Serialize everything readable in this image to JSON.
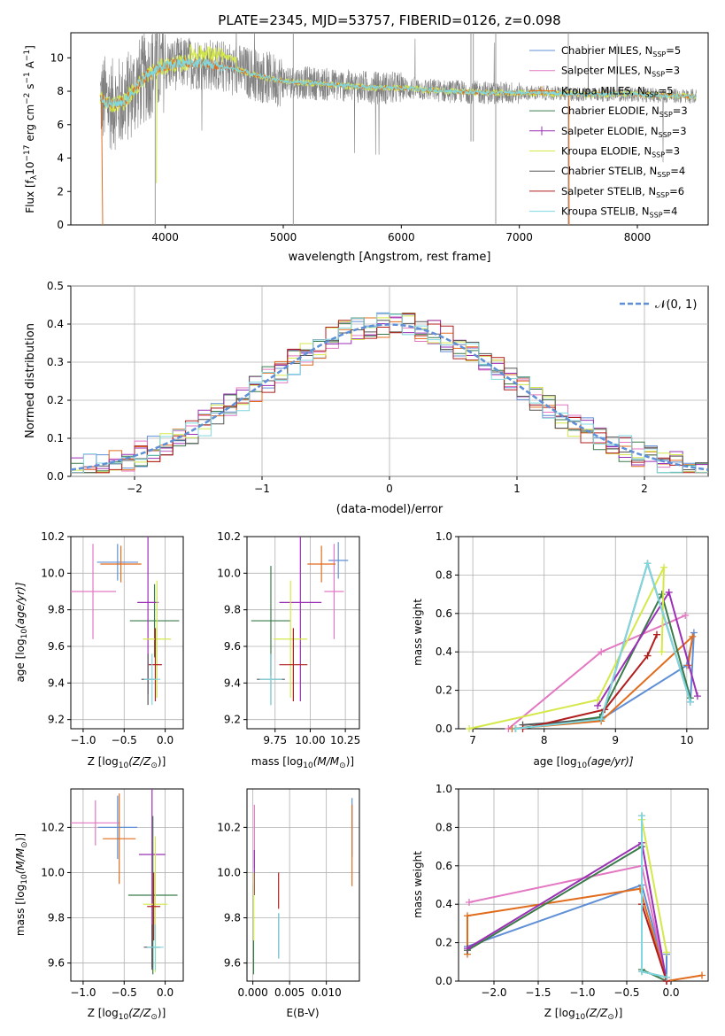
{
  "chart_data": [
    {
      "type": "line",
      "title": "PLATE=2345, MJD=53757, FIBERID=0126, z=0.098",
      "xlabel": "wavelength [Angstrom, rest frame]",
      "ylabel_main": "Flux [f",
      "ylabel_sub": "λ",
      "ylabel_rest": "10",
      "ylabel_exp": "−17",
      "ylabel_tail": " erg cm",
      "ylabel_exp2": "−2",
      "ylabel_tail2": " s",
      "ylabel_exp3": "−1",
      "ylabel_tail3": " A",
      "ylabel_exp4": "−1",
      "ylabel_end": "]",
      "xlim": [
        3200,
        8600
      ],
      "ylim": [
        0,
        11.5
      ],
      "xticks": [
        "4000",
        "5000",
        "6000",
        "7000",
        "8000"
      ],
      "yticks": [
        "0",
        "2",
        "4",
        "6",
        "8",
        "10"
      ],
      "grid": false,
      "legend_position": "top-right",
      "continuum": {
        "x": [
          3450,
          3550,
          3650,
          3750,
          3850,
          3950,
          4050,
          4200,
          4400,
          4600,
          4800,
          5000,
          5200,
          5400,
          5600,
          5800,
          6000,
          6200,
          6400,
          6600,
          6800,
          7000,
          7200,
          7400,
          7600,
          7800,
          8000,
          8200,
          8400,
          8500
        ],
        "y": [
          7.6,
          7.2,
          7.4,
          8.2,
          9.0,
          9.4,
          9.6,
          9.7,
          9.6,
          9.3,
          8.9,
          8.6,
          8.5,
          8.4,
          8.3,
          8.2,
          8.2,
          8.1,
          8.0,
          7.95,
          7.9,
          7.9,
          7.9,
          7.85,
          7.8,
          7.85,
          7.8,
          7.75,
          7.7,
          7.7
        ]
      },
      "series": [
        {
          "name": "Chabrier MILES",
          "sub": "SSP",
          "n": "5",
          "color": "#5f8fd6"
        },
        {
          "name": "Salpeter MILES",
          "sub": "SSP",
          "n": "3",
          "color": "#e377c2"
        },
        {
          "name": "Kroupa MILES",
          "sub": "SSP",
          "n": "5",
          "color": "#e06c1c"
        },
        {
          "name": "Chabrier ELODIE",
          "sub": "SSP",
          "n": "3",
          "color": "#3a7a4a"
        },
        {
          "name": "Salpeter ELODIE",
          "sub": "SSP",
          "n": "3",
          "color": "#9b30b5"
        },
        {
          "name": "Kroupa ELODIE",
          "sub": "SSP",
          "n": "3",
          "color": "#d4e84a"
        },
        {
          "name": "Chabrier STELIB",
          "sub": "SSP",
          "n": "4",
          "color": "#555555"
        },
        {
          "name": "Salpeter STELIB",
          "sub": "SSP",
          "n": "6",
          "color": "#b01e1e"
        },
        {
          "name": "Kroupa STELIB",
          "sub": "SSP",
          "n": "4",
          "color": "#7fd8e0"
        }
      ]
    },
    {
      "type": "bar",
      "ylabel": "Normed distribution",
      "xlabel": "(data-model)/error",
      "xlim": [
        -2.5,
        2.5
      ],
      "ylim": [
        0,
        0.5
      ],
      "xticks": [
        "−2",
        "−1",
        "0",
        "1",
        "2"
      ],
      "yticks": [
        "0.0",
        "0.1",
        "0.2",
        "0.3",
        "0.4",
        "0.5"
      ],
      "grid": true,
      "legend": "𝒩(0, 1)",
      "bins": [
        -2.5,
        -2.4,
        -2.3,
        -2.2,
        -2.1,
        -2.0,
        -1.9,
        -1.8,
        -1.7,
        -1.6,
        -1.5,
        -1.4,
        -1.3,
        -1.2,
        -1.1,
        -1.0,
        -0.9,
        -0.8,
        -0.7,
        -0.6,
        -0.5,
        -0.4,
        -0.3,
        -0.2,
        -0.1,
        0.0,
        0.1,
        0.2,
        0.3,
        0.4,
        0.5,
        0.6,
        0.7,
        0.8,
        0.9,
        1.0,
        1.1,
        1.2,
        1.3,
        1.4,
        1.5,
        1.6,
        1.7,
        1.8,
        1.9,
        2.0,
        2.1,
        2.2,
        2.3,
        2.4,
        2.5
      ]
    },
    {
      "type": "scatter",
      "xlabel": "Z [log",
      "xlabel_sub": "10",
      "xlabel_rest": "(Z/Z",
      "xlabel_sub2": "⊙",
      "xlabel_end": ")]",
      "ylabel": "age  [log",
      "ylabel_sub": "10",
      "ylabel_rest": "(age/yr)]",
      "xticks": [
        "−1.0",
        "−0.5",
        "0.0"
      ],
      "yticks": [
        "9.2",
        "9.4",
        "9.6",
        "9.8",
        "10.0",
        "10.2"
      ],
      "points": [
        {
          "x": -0.58,
          "xe": 0.25,
          "y": 10.06,
          "ye": 0.1,
          "c": "#5f8fd6"
        },
        {
          "x": -0.88,
          "xe": 0.28,
          "y": 9.9,
          "ye": 0.26,
          "c": "#e377c2"
        },
        {
          "x": -0.54,
          "xe": 0.25,
          "y": 10.05,
          "ye": 0.1,
          "c": "#e06c1c"
        },
        {
          "x": -0.13,
          "xe": 0.3,
          "y": 9.74,
          "ye": 0.2,
          "c": "#3a7a4a"
        },
        {
          "x": -0.21,
          "xe": 0.13,
          "y": 9.84,
          "ye": 0.5,
          "c": "#9b30b5"
        },
        {
          "x": -0.1,
          "xe": 0.17,
          "y": 9.64,
          "ye": 0.32,
          "c": "#d4e84a"
        },
        {
          "x": -0.21,
          "xe": 0.08,
          "y": 9.42,
          "ye": 0.14,
          "c": "#555555"
        },
        {
          "x": -0.12,
          "xe": 0.08,
          "y": 9.5,
          "ye": 0.2,
          "c": "#b01e1e"
        },
        {
          "x": -0.16,
          "xe": 0.1,
          "y": 9.42,
          "ye": 0.14,
          "c": "#7fd8e0"
        }
      ]
    },
    {
      "type": "scatter",
      "xlabel": "mass [log",
      "xlabel_sub": "10",
      "xlabel_rest": "(M/M",
      "xlabel_sub2": "⊙",
      "xlabel_end": ")]",
      "xticks": [
        "9.75",
        "10.00",
        "10.25"
      ],
      "yticks": [
        "9.2",
        "9.4",
        "9.6",
        "9.8",
        "10.0",
        "10.2"
      ],
      "points": [
        {
          "x": 10.2,
          "xe": 0.07,
          "y": 10.07,
          "ye": 0.1,
          "c": "#5f8fd6"
        },
        {
          "x": 10.17,
          "xe": 0.07,
          "y": 9.9,
          "ye": 0.26,
          "c": "#e377c2"
        },
        {
          "x": 10.08,
          "xe": 0.1,
          "y": 10.05,
          "ye": 0.1,
          "c": "#e06c1c"
        },
        {
          "x": 9.72,
          "xe": 0.14,
          "y": 9.74,
          "ye": 0.3,
          "c": "#3a7a4a"
        },
        {
          "x": 9.93,
          "xe": 0.15,
          "y": 9.84,
          "ye": 0.54,
          "c": "#9b30b5"
        },
        {
          "x": 9.86,
          "xe": 0.12,
          "y": 9.64,
          "ye": 0.32,
          "c": "#d4e84a"
        },
        {
          "x": 9.72,
          "xe": 0.1,
          "y": 9.42,
          "ye": 0.14,
          "c": "#555555"
        },
        {
          "x": 9.88,
          "xe": 0.1,
          "y": 9.5,
          "ye": 0.2,
          "c": "#b01e1e"
        },
        {
          "x": 9.72,
          "xe": 0.08,
          "y": 9.42,
          "ye": 0.14,
          "c": "#7fd8e0"
        }
      ]
    },
    {
      "type": "line",
      "ylabel": "mass weight",
      "xlabel": "age  [log",
      "xlabel_sub": "10",
      "xlabel_rest": "(age/yr)]",
      "xticks": [
        "7",
        "8",
        "9",
        "10"
      ],
      "yticks": [
        "0.0",
        "0.2",
        "0.4",
        "0.6",
        "0.8",
        "1.0"
      ],
      "grid": true,
      "series": [
        {
          "c": "#5f8fd6",
          "x": [
            7.6,
            8.8,
            10.0,
            10.1,
            10.05
          ],
          "y": [
            0.0,
            0.05,
            0.33,
            0.5,
            0.14
          ]
        },
        {
          "c": "#e377c2",
          "x": [
            7.5,
            8.8,
            9.98
          ],
          "y": [
            0.0,
            0.4,
            0.59
          ]
        },
        {
          "c": "#e06c1c",
          "x": [
            7.55,
            8.8,
            10.08,
            10.02
          ],
          "y": [
            0.0,
            0.04,
            0.48,
            0.33
          ]
        },
        {
          "c": "#3a7a4a",
          "x": [
            7.6,
            8.78,
            9.65,
            10.05
          ],
          "y": [
            0.0,
            0.06,
            0.7,
            0.16
          ]
        },
        {
          "c": "#9b30b5",
          "x": [
            8.75,
            9.75,
            10.15
          ],
          "y": [
            0.12,
            0.71,
            0.17
          ]
        },
        {
          "c": "#d4e84a",
          "x": [
            6.95,
            8.75,
            9.68,
            9.65
          ],
          "y": [
            0.0,
            0.15,
            0.84,
            0.4
          ]
        },
        {
          "c": "#555555",
          "x": [
            7.7,
            8.8,
            9.45,
            10.05
          ],
          "y": [
            0.02,
            0.05,
            0.86,
            0.14
          ]
        },
        {
          "c": "#b01e1e",
          "x": [
            7.7,
            8.85,
            9.45,
            9.58
          ],
          "y": [
            0.0,
            0.1,
            0.38,
            0.49
          ]
        },
        {
          "c": "#7fd8e0",
          "x": [
            7.6,
            8.8,
            9.45,
            10.05
          ],
          "y": [
            0.0,
            0.05,
            0.86,
            0.14
          ]
        }
      ]
    },
    {
      "type": "scatter",
      "xlabel": "Z [log",
      "xlabel_sub": "10",
      "xlabel_rest": "(Z/Z",
      "xlabel_sub2": "⊙",
      "xlabel_end": ")]",
      "ylabel": "mass [log",
      "ylabel_sub": "10",
      "ylabel_rest": "(M/M",
      "ylabel_sub2": "⊙",
      "ylabel_end": ")]",
      "xticks": [
        "−1.0",
        "−0.5",
        "0.0"
      ],
      "yticks": [
        "9.6",
        "9.8",
        "10.0",
        "10.2"
      ],
      "points": [
        {
          "x": -0.58,
          "xe": 0.24,
          "y": 10.2,
          "ye": 0.14,
          "c": "#5f8fd6"
        },
        {
          "x": -0.85,
          "xe": 0.3,
          "y": 10.22,
          "ye": 0.1,
          "c": "#e377c2"
        },
        {
          "x": -0.56,
          "xe": 0.2,
          "y": 10.15,
          "ye": 0.2,
          "c": "#e06c1c"
        },
        {
          "x": -0.15,
          "xe": 0.3,
          "y": 9.9,
          "ye": 0.35,
          "c": "#3a7a4a"
        },
        {
          "x": -0.16,
          "xe": 0.16,
          "y": 10.08,
          "ye": 0.5,
          "c": "#9b30b5"
        },
        {
          "x": -0.12,
          "xe": 0.15,
          "y": 9.86,
          "ye": 0.3,
          "c": "#d4e84a"
        },
        {
          "x": -0.16,
          "xe": 0.1,
          "y": 9.67,
          "ye": 0.1,
          "c": "#555555"
        },
        {
          "x": -0.14,
          "xe": 0.08,
          "y": 9.85,
          "ye": 0.15,
          "c": "#b01e1e"
        },
        {
          "x": -0.12,
          "xe": 0.1,
          "y": 9.67,
          "ye": 0.1,
          "c": "#7fd8e0"
        }
      ]
    },
    {
      "type": "scatter",
      "xlabel": "E(B-V)",
      "xticks": [
        "0.000",
        "0.005",
        "0.010"
      ],
      "yticks": [
        "9.6",
        "9.8",
        "10.0",
        "10.2"
      ],
      "points": [
        {
          "x": 0.0135,
          "ye": 0.13,
          "y": 10.2,
          "c": "#5f8fd6"
        },
        {
          "x": 0.0002,
          "ye": 0.14,
          "y": 10.16,
          "c": "#e377c2"
        },
        {
          "x": 0.0135,
          "ye": 0.18,
          "y": 10.12,
          "c": "#e06c1c"
        },
        {
          "x": 0.0001,
          "ye": 0.2,
          "y": 9.75,
          "c": "#3a7a4a"
        },
        {
          "x": 0.0002,
          "ye": 0.1,
          "y": 10.0,
          "c": "#9b30b5"
        },
        {
          "x": 0.0001,
          "ye": 0.15,
          "y": 9.85,
          "c": "#d4e84a"
        },
        {
          "x": 0.0035,
          "ye": 0.1,
          "y": 9.72,
          "c": "#555555"
        },
        {
          "x": 0.0035,
          "ye": 0.08,
          "y": 9.92,
          "c": "#b01e1e"
        },
        {
          "x": 0.0035,
          "ye": 0.1,
          "y": 9.72,
          "c": "#7fd8e0"
        }
      ]
    },
    {
      "type": "line",
      "ylabel": "mass weight",
      "xlabel": "Z [log",
      "xlabel_sub": "10",
      "xlabel_rest": "(Z/Z",
      "xlabel_sub2": "⊙",
      "xlabel_end": ")]",
      "xticks": [
        "−2.0",
        "−1.5",
        "−1.0",
        "−0.5",
        "0.0"
      ],
      "yticks": [
        "0.0",
        "0.2",
        "0.4",
        "0.6",
        "0.8",
        "1.0"
      ],
      "grid": true,
      "series": [
        {
          "c": "#5f8fd6",
          "x": [
            -2.3,
            -0.33,
            -0.05,
            -0.05
          ],
          "y": [
            0.18,
            0.5,
            0.02,
            0.14
          ]
        },
        {
          "c": "#e377c2",
          "x": [
            -2.28,
            -0.33,
            -0.05
          ],
          "y": [
            0.41,
            0.6,
            0.0
          ]
        },
        {
          "c": "#e06c1c",
          "x": [
            -2.3,
            -2.3,
            -0.35,
            -0.05,
            0.35
          ],
          "y": [
            0.14,
            0.34,
            0.48,
            0.0,
            0.03
          ]
        },
        {
          "c": "#3a7a4a",
          "x": [
            -2.3,
            -0.33,
            -0.33,
            -0.05
          ],
          "y": [
            0.16,
            0.7,
            0.06,
            0.0
          ]
        },
        {
          "c": "#9b30b5",
          "x": [
            -2.3,
            -0.33,
            -0.05
          ],
          "y": [
            0.17,
            0.72,
            0.0
          ]
        },
        {
          "c": "#d4e84a",
          "x": [
            -0.33,
            -0.05
          ],
          "y": [
            0.84,
            0.15
          ]
        },
        {
          "c": "#555555",
          "x": [
            -0.33,
            -0.33,
            -0.05
          ],
          "y": [
            0.86,
            0.05,
            0.02
          ]
        },
        {
          "c": "#b01e1e",
          "x": [
            -0.33,
            -0.05
          ],
          "y": [
            0.4,
            0.0
          ]
        },
        {
          "c": "#7fd8e0",
          "x": [
            -0.33,
            -0.33,
            -0.05
          ],
          "y": [
            0.86,
            0.05,
            0.02
          ]
        }
      ]
    }
  ]
}
